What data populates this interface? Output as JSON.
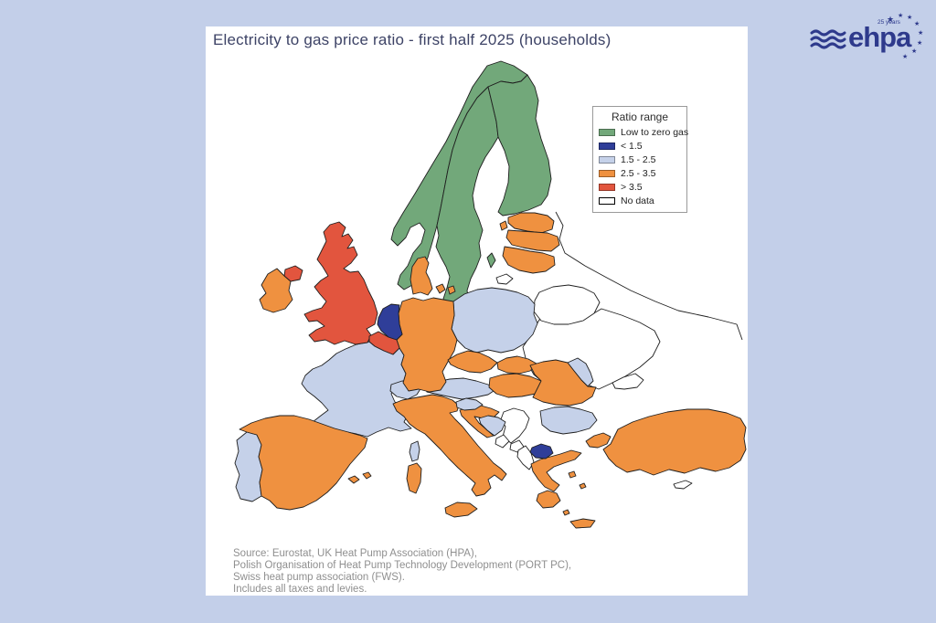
{
  "page": {
    "background_color": "#c3cfe9",
    "panel_color": "#ffffff"
  },
  "title": {
    "text": "Electricity to gas price ratio - first half 2025 (households)",
    "color": "#3d4366"
  },
  "legend": {
    "title": "Ratio range",
    "items": [
      {
        "label": "Low to zero gas",
        "category": "low_to_zero_gas",
        "color": "#72a87a"
      },
      {
        "label": "< 1.5",
        "category": "lt_1_5",
        "color": "#2f3e99"
      },
      {
        "label": "1.5 - 2.5",
        "category": "r_1_5_to_2_5",
        "color": "#c5d1e9"
      },
      {
        "label": "2.5 - 3.5",
        "category": "r_2_5_to_3_5",
        "color": "#ef9140"
      },
      {
        "label": "> 3.5",
        "category": "gt_3_5",
        "color": "#e2553e"
      },
      {
        "label": "No data",
        "category": "no_data",
        "color": "#ffffff"
      }
    ]
  },
  "source": {
    "color": "#8f8f8f",
    "lines": [
      "Source: Eurostat, UK Heat Pump Association (HPA),",
      "Polish Organisation of Heat Pump Technology Development (PORT PC),",
      "Swiss heat pump association (FWS).",
      "Includes all taxes and levies."
    ]
  },
  "logo": {
    "brand": "ehpa",
    "anniversary": "25 years",
    "color": "#2e3a8c"
  },
  "map": {
    "stroke_color": "#1f1f1f",
    "countries": {
      "norway": "low_to_zero_gas",
      "sweden": "low_to_zero_gas",
      "finland": "low_to_zero_gas",
      "gotland": "low_to_zero_gas",
      "netherlands": "lt_1_5",
      "north-macedonia": "lt_1_5",
      "france": "r_1_5_to_2_5",
      "corsica": "r_1_5_to_2_5",
      "poland": "r_1_5_to_2_5",
      "switzerland": "r_1_5_to_2_5",
      "austria": "r_1_5_to_2_5",
      "slovenia": "r_1_5_to_2_5",
      "bosnia-herzegovina": "r_1_5_to_2_5",
      "bulgaria": "r_1_5_to_2_5",
      "portugal": "r_1_5_to_2_5",
      "moldova": "r_1_5_to_2_5",
      "ireland": "r_2_5_to_3_5",
      "denmark": "r_2_5_to_3_5",
      "germany": "r_2_5_to_3_5",
      "estonia": "r_2_5_to_3_5",
      "latvia": "r_2_5_to_3_5",
      "lithuania": "r_2_5_to_3_5",
      "czechia": "r_2_5_to_3_5",
      "slovakia": "r_2_5_to_3_5",
      "hungary": "r_2_5_to_3_5",
      "croatia": "r_2_5_to_3_5",
      "romania": "r_2_5_to_3_5",
      "spain": "r_2_5_to_3_5",
      "balearic-islands": "r_2_5_to_3_5",
      "italy": "r_2_5_to_3_5",
      "sardinia": "r_2_5_to_3_5",
      "sicily": "r_2_5_to_3_5",
      "greece": "r_2_5_to_3_5",
      "peloponnese": "r_2_5_to_3_5",
      "crete": "r_2_5_to_3_5",
      "greek-islands": "r_2_5_to_3_5",
      "turkish-thrace": "r_2_5_to_3_5",
      "turkey": "r_2_5_to_3_5",
      "united-kingdom": "gt_3_5",
      "northern-ireland": "gt_3_5",
      "belgium": "gt_3_5",
      "ukraine": "no_data",
      "crimea": "no_data",
      "belarus": "no_data",
      "russia-kaliningrad": "no_data",
      "serbia": "no_data",
      "montenegro": "no_data",
      "kosovo": "no_data",
      "albania": "no_data",
      "cyprus": "no_data"
    }
  }
}
